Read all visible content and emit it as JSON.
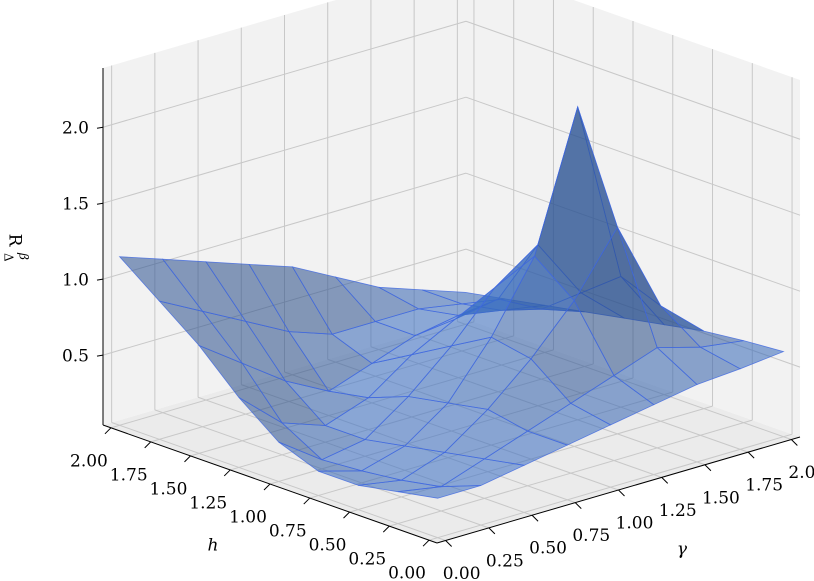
{
  "chart_data": {
    "type": "surface",
    "xlabel": "h",
    "ylabel": "γ",
    "zlabel": {
      "base": "R",
      "sub": "Δ",
      "sup": "β"
    },
    "x": [
      0,
      0.25,
      0.5,
      0.75,
      1,
      1.25,
      1.5,
      1.75,
      2
    ],
    "y": [
      0,
      0.25,
      0.5,
      0.75,
      1,
      1.25,
      1.5,
      1.75,
      2
    ],
    "z": [
      [
        0.3,
        0.3,
        0.35,
        0.4,
        0.45,
        0.5,
        0.55,
        0.57,
        0.6
      ],
      [
        0.25,
        0.2,
        0.3,
        0.4,
        0.5,
        0.6,
        0.7,
        0.62,
        0.58
      ],
      [
        0.2,
        0.15,
        0.25,
        0.45,
        0.7,
        1.0,
        1.4,
        0.8,
        0.55
      ],
      [
        0.2,
        0.12,
        0.2,
        0.4,
        0.75,
        1.2,
        2.1,
        0.9,
        0.5
      ],
      [
        0.3,
        0.1,
        0.15,
        0.35,
        0.6,
        0.9,
        1.1,
        0.7,
        0.45
      ],
      [
        0.5,
        0.25,
        0.15,
        0.25,
        0.45,
        0.6,
        0.65,
        0.5,
        0.4
      ],
      [
        0.75,
        0.55,
        0.35,
        0.2,
        0.3,
        0.4,
        0.45,
        0.4,
        0.35
      ],
      [
        0.95,
        0.8,
        0.65,
        0.5,
        0.4,
        0.4,
        0.4,
        0.35,
        0.3
      ],
      [
        1.15,
        1.05,
        0.95,
        0.85,
        0.75,
        0.6,
        0.45,
        0.35,
        0.25
      ]
    ],
    "xlim": [
      -0.05,
      2.05
    ],
    "ylim": [
      -0.05,
      2.05
    ],
    "zlim": [
      0.04,
      2.39
    ],
    "xticks": [
      {
        "value": 0,
        "label": "0.00"
      },
      {
        "value": 0.25,
        "label": "0.25"
      },
      {
        "value": 0.5,
        "label": "0.50"
      },
      {
        "value": 0.75,
        "label": "0.75"
      },
      {
        "value": 1,
        "label": "1.00"
      },
      {
        "value": 1.25,
        "label": "1.25"
      },
      {
        "value": 1.5,
        "label": "1.50"
      },
      {
        "value": 1.75,
        "label": "1.75"
      },
      {
        "value": 2,
        "label": "2.00"
      }
    ],
    "yticks": [
      {
        "value": 0,
        "label": "0.00"
      },
      {
        "value": 0.25,
        "label": "0.25"
      },
      {
        "value": 0.5,
        "label": "0.50"
      },
      {
        "value": 0.75,
        "label": "0.75"
      },
      {
        "value": 1,
        "label": "1.00"
      },
      {
        "value": 1.25,
        "label": "1.25"
      },
      {
        "value": 1.5,
        "label": "1.50"
      },
      {
        "value": 1.75,
        "label": "1.75"
      },
      {
        "value": 2,
        "label": "2.00"
      }
    ],
    "zticks": [
      {
        "value": 0.5,
        "label": "0.5"
      },
      {
        "value": 1,
        "label": "1.0"
      },
      {
        "value": 1.5,
        "label": "1.5"
      },
      {
        "value": 2,
        "label": "2.0"
      }
    ],
    "grid": true,
    "color": "#3a70c8",
    "edgecolor": "#4169e1",
    "alpha": 0.55
  }
}
